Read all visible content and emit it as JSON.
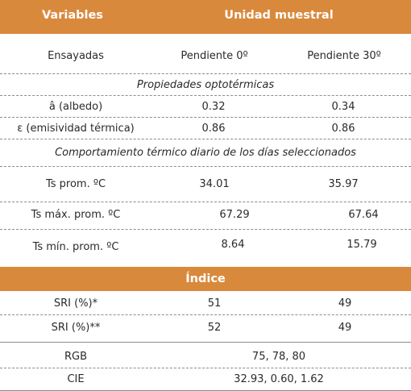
{
  "header": {
    "col_variables": "Variables",
    "col_unit": "Unidad muestral"
  },
  "subheader": {
    "label": "Ensayadas",
    "col1": "Pendiente 0º",
    "col2": "Pendiente 30º"
  },
  "section_optothermal": {
    "title": "Propiedades optotérmicas",
    "rows": [
      {
        "label": "â (albedo)",
        "v1": "0.32",
        "v2": "0.34"
      },
      {
        "label": "ε (emisividad térmica)",
        "v1": "0.86",
        "v2": "0.86"
      }
    ]
  },
  "section_thermal": {
    "title": "Comportamiento térmico diario de los días seleccionados",
    "rows": [
      {
        "label": "Ts prom. ºC",
        "v1": "34.01",
        "v2": "35.97"
      },
      {
        "label": "Ts máx. prom. ºC",
        "v1": "67.29",
        "v2": "67.64"
      },
      {
        "label": "Ts mín. prom. ºC",
        "v1": "8.64",
        "v2": "15.79"
      }
    ]
  },
  "section_index": {
    "title": "Índice",
    "rows": [
      {
        "label": "SRI (%)*",
        "v1": "51",
        "v2": "49"
      },
      {
        "label": "SRI (%)**",
        "v1": "52",
        "v2": "49"
      }
    ]
  },
  "color_rows": [
    {
      "label": "RGB",
      "value": "75, 78, 80"
    },
    {
      "label": "CIE",
      "value": "32.93, 0.60, 1.62"
    }
  ],
  "colors": {
    "accent": "#d9893c",
    "text": "#2a2a2a",
    "rule": "#8c8c8c"
  }
}
